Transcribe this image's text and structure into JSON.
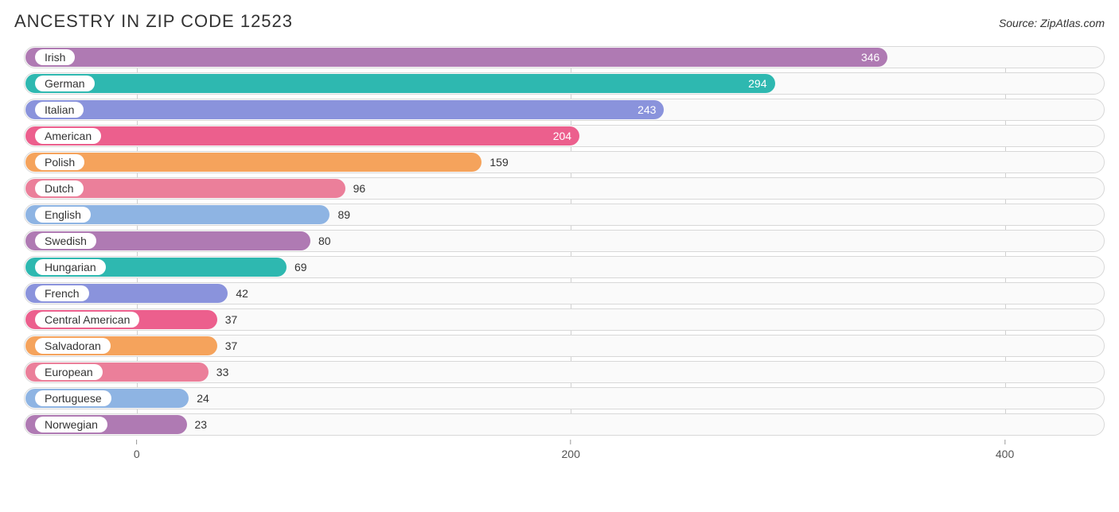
{
  "title": "ANCESTRY IN ZIP CODE 12523",
  "source": "Source: ZipAtlas.com",
  "chart": {
    "type": "bar-horizontal",
    "colors_cycle": [
      "#af7ab3",
      "#2eb8b0",
      "#8a93dc",
      "#ec5f8d",
      "#f5a35c",
      "#eb7f9a",
      "#8eb4e3"
    ],
    "track_bg": "#fafafa",
    "track_border": "#d8d8d8",
    "grid_color": "#d0d0d0",
    "value_inside_color": "#ffffff",
    "value_outside_color": "#333333",
    "label_fontsize": 14,
    "title_fontsize": 22,
    "x_offset_value": -52,
    "x_scale_max": 446,
    "x_ticks": [
      0,
      200,
      400
    ],
    "inside_threshold": 200,
    "items": [
      {
        "label": "Irish",
        "value": 346
      },
      {
        "label": "German",
        "value": 294
      },
      {
        "label": "Italian",
        "value": 243
      },
      {
        "label": "American",
        "value": 204
      },
      {
        "label": "Polish",
        "value": 159
      },
      {
        "label": "Dutch",
        "value": 96
      },
      {
        "label": "English",
        "value": 89
      },
      {
        "label": "Swedish",
        "value": 80
      },
      {
        "label": "Hungarian",
        "value": 69
      },
      {
        "label": "French",
        "value": 42
      },
      {
        "label": "Central American",
        "value": 37
      },
      {
        "label": "Salvadoran",
        "value": 37
      },
      {
        "label": "European",
        "value": 33
      },
      {
        "label": "Portuguese",
        "value": 24
      },
      {
        "label": "Norwegian",
        "value": 23
      }
    ]
  }
}
